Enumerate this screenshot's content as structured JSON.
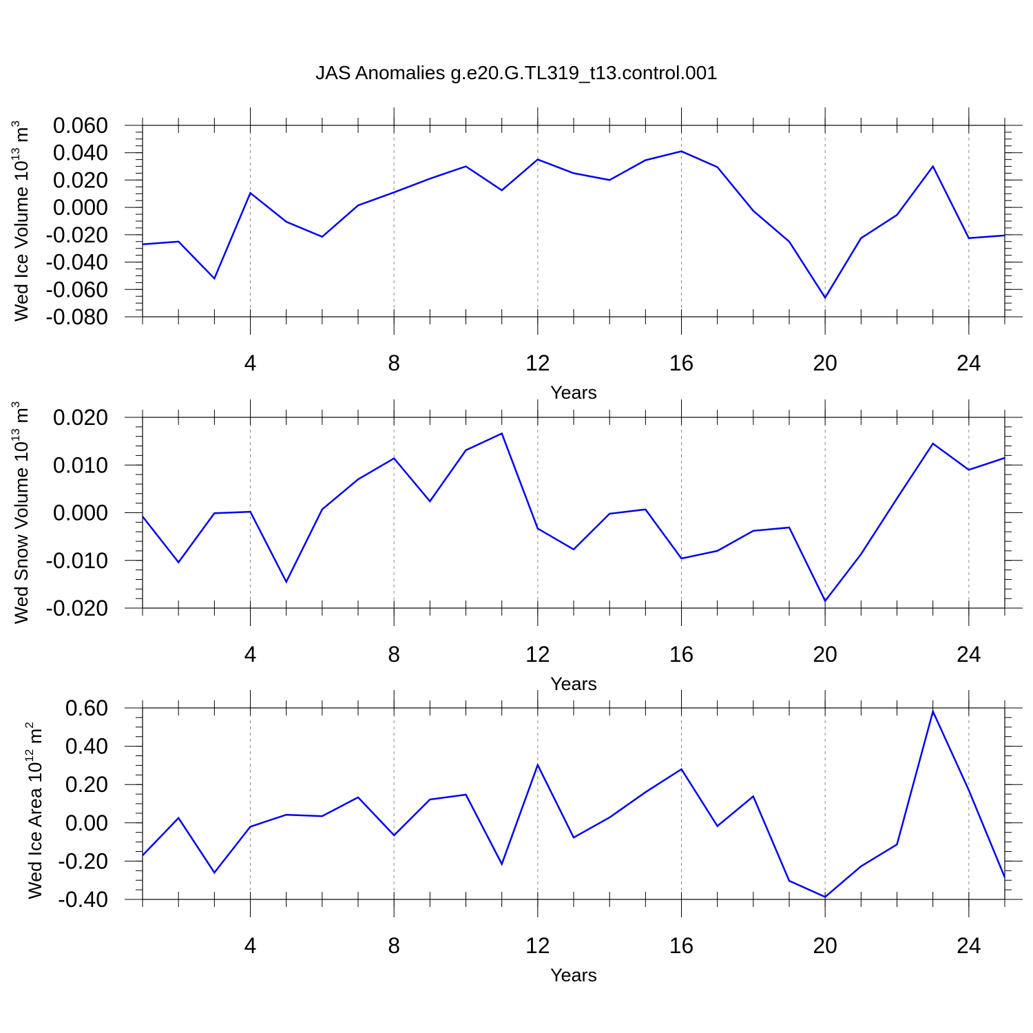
{
  "page": {
    "title": "JAS Anomalies g.e20.G.TL319_t13.control.001"
  },
  "style": {
    "line_color": "#0000ee",
    "axis_color": "#000000",
    "grid_color": "#888888"
  },
  "chart_data": [
    {
      "type": "line",
      "title": "",
      "ylabel": {
        "prefix": "Wed Ice Volume 10",
        "sup": "13",
        "unit": " m",
        "unit_sup": "3"
      },
      "xlabel": "Years",
      "xlim": [
        1,
        25
      ],
      "ylim": [
        -0.08,
        0.06
      ],
      "yticks": [
        {
          "v": -0.08,
          "label": "-0.080"
        },
        {
          "v": -0.06,
          "label": "-0.060"
        },
        {
          "v": -0.04,
          "label": "-0.040"
        },
        {
          "v": -0.02,
          "label": "-0.020"
        },
        {
          "v": 0.0,
          "label": "0.000"
        },
        {
          "v": 0.02,
          "label": "0.020"
        },
        {
          "v": 0.04,
          "label": "0.040"
        },
        {
          "v": 0.06,
          "label": "0.060"
        }
      ],
      "yminor": 0.005,
      "xticks": [
        {
          "v": 4,
          "label": "4"
        },
        {
          "v": 8,
          "label": "8"
        },
        {
          "v": 12,
          "label": "12"
        },
        {
          "v": 16,
          "label": "16"
        },
        {
          "v": 20,
          "label": "20"
        },
        {
          "v": 24,
          "label": "24"
        }
      ],
      "grid_x": [
        4,
        8,
        12,
        16,
        20,
        24
      ],
      "x": [
        1,
        2,
        3,
        4,
        5,
        6,
        7,
        8,
        9,
        10,
        11,
        12,
        13,
        14,
        15,
        16,
        17,
        18,
        19,
        20,
        21,
        22,
        23,
        24,
        25
      ],
      "values": [
        -0.027,
        -0.025,
        -0.052,
        0.0105,
        -0.0105,
        -0.0215,
        0.0015,
        0.011,
        0.021,
        0.03,
        0.0125,
        0.035,
        0.025,
        0.02,
        0.0345,
        0.041,
        0.0295,
        -0.0025,
        -0.025,
        -0.066,
        -0.0225,
        -0.0055,
        0.03,
        -0.0225,
        -0.0205
      ]
    },
    {
      "type": "line",
      "title": "",
      "ylabel": {
        "prefix": "Wed Snow Volume 10",
        "sup": "13",
        "unit": " m",
        "unit_sup": "3"
      },
      "xlabel": "Years",
      "xlim": [
        1,
        25
      ],
      "ylim": [
        -0.02,
        0.02
      ],
      "yticks": [
        {
          "v": -0.02,
          "label": "-0.020"
        },
        {
          "v": -0.01,
          "label": "-0.010"
        },
        {
          "v": 0.0,
          "label": "0.000"
        },
        {
          "v": 0.01,
          "label": "0.010"
        },
        {
          "v": 0.02,
          "label": "0.020"
        }
      ],
      "yminor": 0.002,
      "xticks": [
        {
          "v": 4,
          "label": "4"
        },
        {
          "v": 8,
          "label": "8"
        },
        {
          "v": 12,
          "label": "12"
        },
        {
          "v": 16,
          "label": "16"
        },
        {
          "v": 20,
          "label": "20"
        },
        {
          "v": 24,
          "label": "24"
        }
      ],
      "grid_x": [
        4,
        8,
        12,
        16,
        20,
        24
      ],
      "x": [
        1,
        2,
        3,
        4,
        5,
        6,
        7,
        8,
        9,
        10,
        11,
        12,
        13,
        14,
        15,
        16,
        17,
        18,
        19,
        20,
        21,
        22,
        23,
        24,
        25
      ],
      "values": [
        -0.0008,
        -0.0104,
        -0.0001,
        0.0002,
        -0.0145,
        0.0007,
        0.007,
        0.0114,
        0.0024,
        0.0131,
        0.0166,
        -0.0033,
        -0.0077,
        -0.0002,
        0.0007,
        -0.0096,
        -0.008,
        -0.0038,
        -0.0031,
        -0.0185,
        -0.0087,
        0.003,
        0.0145,
        0.009,
        0.0115
      ]
    },
    {
      "type": "line",
      "title": "",
      "ylabel": {
        "prefix": "Wed Ice Area 10",
        "sup": "12",
        "unit": " m",
        "unit_sup": "2"
      },
      "xlabel": "Years",
      "xlim": [
        1,
        25
      ],
      "ylim": [
        -0.4,
        0.6
      ],
      "yticks": [
        {
          "v": -0.4,
          "label": "-0.40"
        },
        {
          "v": -0.2,
          "label": "-0.20"
        },
        {
          "v": 0.0,
          "label": "0.00"
        },
        {
          "v": 0.2,
          "label": "0.20"
        },
        {
          "v": 0.4,
          "label": "0.40"
        },
        {
          "v": 0.6,
          "label": "0.60"
        }
      ],
      "yminor": 0.05,
      "xticks": [
        {
          "v": 4,
          "label": "4"
        },
        {
          "v": 8,
          "label": "8"
        },
        {
          "v": 12,
          "label": "12"
        },
        {
          "v": 16,
          "label": "16"
        },
        {
          "v": 20,
          "label": "20"
        },
        {
          "v": 24,
          "label": "24"
        }
      ],
      "grid_x": [
        4,
        8,
        12,
        16,
        20,
        24
      ],
      "x": [
        1,
        2,
        3,
        4,
        5,
        6,
        7,
        8,
        9,
        10,
        11,
        12,
        13,
        14,
        15,
        16,
        17,
        18,
        19,
        20,
        21,
        22,
        23,
        24,
        25
      ],
      "values": [
        -0.17,
        0.025,
        -0.26,
        -0.02,
        0.042,
        0.035,
        0.133,
        -0.065,
        0.122,
        0.147,
        -0.215,
        0.302,
        -0.077,
        0.028,
        0.16,
        0.28,
        -0.017,
        0.138,
        -0.303,
        -0.387,
        -0.227,
        -0.113,
        0.582,
        0.17,
        -0.285
      ]
    }
  ]
}
